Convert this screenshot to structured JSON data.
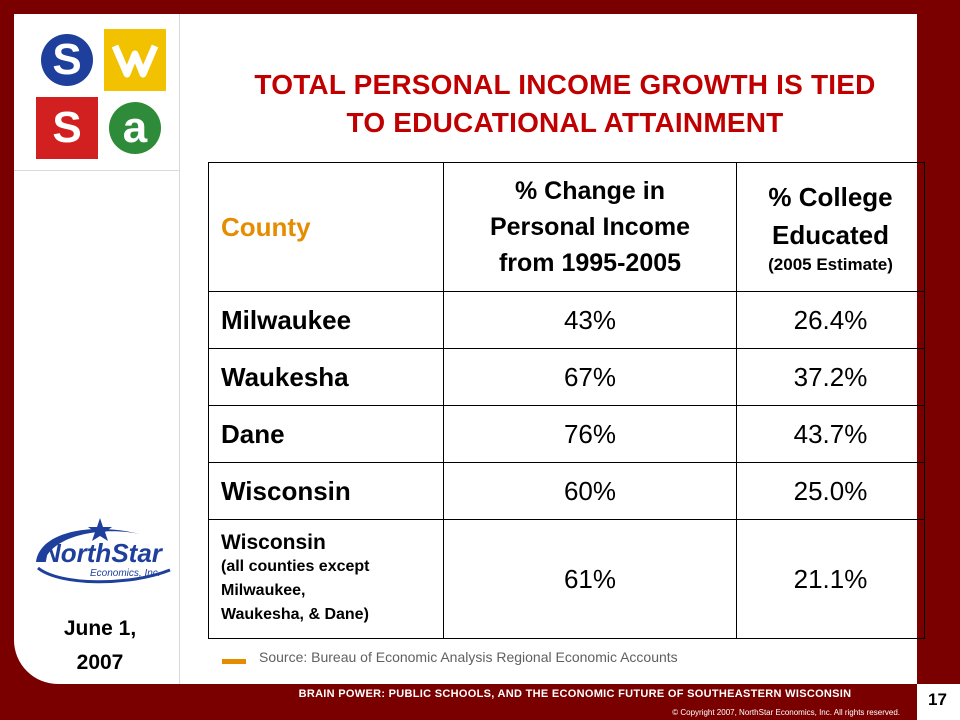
{
  "title": {
    "line1": "TOTAL PERSONAL INCOME GROWTH IS TIED",
    "line2": "TO EDUCATIONAL ATTAINMENT"
  },
  "logo": {
    "letters": [
      "S",
      "W",
      "S",
      "a"
    ],
    "colors": [
      "#1f3f9c",
      "#e8b800",
      "#d22020",
      "#2e8b3a"
    ]
  },
  "table": {
    "headers": {
      "county": "County",
      "income_l1": "% Change in",
      "income_l2": "Personal Income",
      "income_l3": "from 1995-2005",
      "college_l1": "% College",
      "college_l2": "Educated",
      "college_sub": "(2005 Estimate)"
    },
    "rows": [
      {
        "county": "Milwaukee",
        "income": "43%",
        "college": "26.4%"
      },
      {
        "county": "Waukesha",
        "income": "67%",
        "college": "37.2%"
      },
      {
        "county": "Dane",
        "income": "76%",
        "college": "43.7%"
      },
      {
        "county": "Wisconsin",
        "income": "60%",
        "college": "25.0%"
      }
    ],
    "last_row": {
      "county": "Wisconsin",
      "note_l1": "(all counties except",
      "note_l2": "Milwaukee,",
      "note_l3": "Waukesha, & Dane)",
      "income": "61%",
      "college": "21.1%"
    }
  },
  "source": "Source: Bureau of Economic Analysis Regional Economic Accounts",
  "date": {
    "line1": "June 1,",
    "line2": "2007"
  },
  "northstar": {
    "brand": "NorthStar",
    "sub": "Economics, Inc."
  },
  "footer": {
    "title": "BRAIN POWER: PUBLIC SCHOOLS, AND THE ECONOMIC FUTURE OF SOUTHEASTERN WISCONSIN",
    "copyright": "© Copyright 2007, NorthStar Economics, Inc. All rights reserved."
  },
  "page_number": "17",
  "colors": {
    "frame": "#7a0000",
    "title": "#c00000",
    "accent": "#e58c00"
  }
}
